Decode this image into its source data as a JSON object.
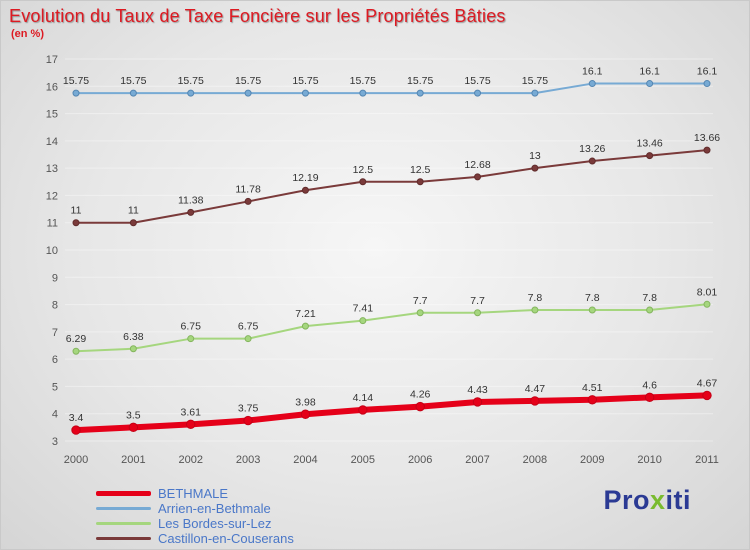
{
  "header": {
    "title": "Evolution du Taux de Taxe Foncière sur les Propriétés Bâties",
    "subtitle": "(en %)"
  },
  "chart_data": {
    "type": "line",
    "x": [
      2000,
      2001,
      2002,
      2003,
      2004,
      2005,
      2006,
      2007,
      2008,
      2009,
      2010,
      2011
    ],
    "series": [
      {
        "name": "BETHMALE",
        "color": "#e50019",
        "marker_stroke": "#c40016",
        "width": 6,
        "values": [
          3.4,
          3.5,
          3.61,
          3.75,
          3.98,
          4.14,
          4.26,
          4.43,
          4.47,
          4.51,
          4.6,
          4.67
        ]
      },
      {
        "name": "Arrien-en-Bethmale",
        "color": "#77aad4",
        "marker_stroke": "#5486b2",
        "width": 2,
        "values": [
          15.75,
          15.75,
          15.75,
          15.75,
          15.75,
          15.75,
          15.75,
          15.75,
          15.75,
          16.1,
          16.1,
          16.1
        ]
      },
      {
        "name": "Les Bordes-sur-Lez",
        "color": "#a5d67e",
        "marker_stroke": "#84b55e",
        "width": 2,
        "values": [
          6.29,
          6.38,
          6.75,
          6.75,
          7.21,
          7.41,
          7.7,
          7.7,
          7.8,
          7.8,
          7.8,
          8.01
        ]
      },
      {
        "name": "Castillon-en-Couserans",
        "color": "#7a3a3a",
        "marker_stroke": "#612c2c",
        "width": 2,
        "values": [
          11,
          11,
          11.38,
          11.78,
          12.19,
          12.5,
          12.5,
          12.68,
          13,
          13.26,
          13.46,
          13.66
        ]
      }
    ],
    "ylim": [
      3,
      17
    ],
    "ytick_step": 1,
    "grid": true,
    "legend_position": "bottom-left"
  },
  "logo": {
    "text": "Proxiti",
    "parts": [
      {
        "text": "Pro",
        "color": "#2b3a94"
      },
      {
        "text": "x",
        "color": "#79bb2f"
      },
      {
        "text": "iti",
        "color": "#2b3a94"
      }
    ]
  }
}
